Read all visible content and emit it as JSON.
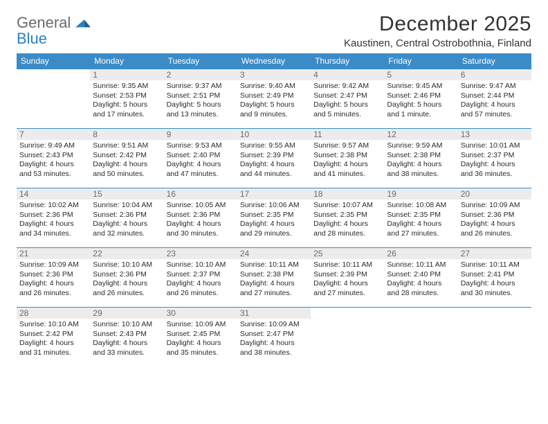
{
  "brand": {
    "word1": "General",
    "word2": "Blue"
  },
  "title": "December 2025",
  "location": "Kaustinen, Central Ostrobothnia, Finland",
  "colors": {
    "header_bg": "#3b8bc8",
    "header_text": "#ffffff",
    "row_border": "#3b8bc8",
    "daynum_bg": "#ececec",
    "daynum_text": "#6a6a6a",
    "body_text": "#2a2a2a",
    "page_bg": "#ffffff",
    "logo_gray": "#6a6a6a",
    "logo_blue": "#2a7fbf"
  },
  "typography": {
    "title_fontsize": 30,
    "location_fontsize": 15,
    "header_fontsize": 12,
    "daynum_fontsize": 12,
    "cell_fontsize": 10.5
  },
  "day_headers": [
    "Sunday",
    "Monday",
    "Tuesday",
    "Wednesday",
    "Thursday",
    "Friday",
    "Saturday"
  ],
  "weeks": [
    [
      null,
      {
        "n": "1",
        "sunrise": "9:35 AM",
        "sunset": "2:53 PM",
        "daylight": "5 hours and 17 minutes."
      },
      {
        "n": "2",
        "sunrise": "9:37 AM",
        "sunset": "2:51 PM",
        "daylight": "5 hours and 13 minutes."
      },
      {
        "n": "3",
        "sunrise": "9:40 AM",
        "sunset": "2:49 PM",
        "daylight": "5 hours and 9 minutes."
      },
      {
        "n": "4",
        "sunrise": "9:42 AM",
        "sunset": "2:47 PM",
        "daylight": "5 hours and 5 minutes."
      },
      {
        "n": "5",
        "sunrise": "9:45 AM",
        "sunset": "2:46 PM",
        "daylight": "5 hours and 1 minute."
      },
      {
        "n": "6",
        "sunrise": "9:47 AM",
        "sunset": "2:44 PM",
        "daylight": "4 hours and 57 minutes."
      }
    ],
    [
      {
        "n": "7",
        "sunrise": "9:49 AM",
        "sunset": "2:43 PM",
        "daylight": "4 hours and 53 minutes."
      },
      {
        "n": "8",
        "sunrise": "9:51 AM",
        "sunset": "2:42 PM",
        "daylight": "4 hours and 50 minutes."
      },
      {
        "n": "9",
        "sunrise": "9:53 AM",
        "sunset": "2:40 PM",
        "daylight": "4 hours and 47 minutes."
      },
      {
        "n": "10",
        "sunrise": "9:55 AM",
        "sunset": "2:39 PM",
        "daylight": "4 hours and 44 minutes."
      },
      {
        "n": "11",
        "sunrise": "9:57 AM",
        "sunset": "2:38 PM",
        "daylight": "4 hours and 41 minutes."
      },
      {
        "n": "12",
        "sunrise": "9:59 AM",
        "sunset": "2:38 PM",
        "daylight": "4 hours and 38 minutes."
      },
      {
        "n": "13",
        "sunrise": "10:01 AM",
        "sunset": "2:37 PM",
        "daylight": "4 hours and 36 minutes."
      }
    ],
    [
      {
        "n": "14",
        "sunrise": "10:02 AM",
        "sunset": "2:36 PM",
        "daylight": "4 hours and 34 minutes."
      },
      {
        "n": "15",
        "sunrise": "10:04 AM",
        "sunset": "2:36 PM",
        "daylight": "4 hours and 32 minutes."
      },
      {
        "n": "16",
        "sunrise": "10:05 AM",
        "sunset": "2:36 PM",
        "daylight": "4 hours and 30 minutes."
      },
      {
        "n": "17",
        "sunrise": "10:06 AM",
        "sunset": "2:35 PM",
        "daylight": "4 hours and 29 minutes."
      },
      {
        "n": "18",
        "sunrise": "10:07 AM",
        "sunset": "2:35 PM",
        "daylight": "4 hours and 28 minutes."
      },
      {
        "n": "19",
        "sunrise": "10:08 AM",
        "sunset": "2:35 PM",
        "daylight": "4 hours and 27 minutes."
      },
      {
        "n": "20",
        "sunrise": "10:09 AM",
        "sunset": "2:36 PM",
        "daylight": "4 hours and 26 minutes."
      }
    ],
    [
      {
        "n": "21",
        "sunrise": "10:09 AM",
        "sunset": "2:36 PM",
        "daylight": "4 hours and 26 minutes."
      },
      {
        "n": "22",
        "sunrise": "10:10 AM",
        "sunset": "2:36 PM",
        "daylight": "4 hours and 26 minutes."
      },
      {
        "n": "23",
        "sunrise": "10:10 AM",
        "sunset": "2:37 PM",
        "daylight": "4 hours and 26 minutes."
      },
      {
        "n": "24",
        "sunrise": "10:11 AM",
        "sunset": "2:38 PM",
        "daylight": "4 hours and 27 minutes."
      },
      {
        "n": "25",
        "sunrise": "10:11 AM",
        "sunset": "2:39 PM",
        "daylight": "4 hours and 27 minutes."
      },
      {
        "n": "26",
        "sunrise": "10:11 AM",
        "sunset": "2:40 PM",
        "daylight": "4 hours and 28 minutes."
      },
      {
        "n": "27",
        "sunrise": "10:11 AM",
        "sunset": "2:41 PM",
        "daylight": "4 hours and 30 minutes."
      }
    ],
    [
      {
        "n": "28",
        "sunrise": "10:10 AM",
        "sunset": "2:42 PM",
        "daylight": "4 hours and 31 minutes."
      },
      {
        "n": "29",
        "sunrise": "10:10 AM",
        "sunset": "2:43 PM",
        "daylight": "4 hours and 33 minutes."
      },
      {
        "n": "30",
        "sunrise": "10:09 AM",
        "sunset": "2:45 PM",
        "daylight": "4 hours and 35 minutes."
      },
      {
        "n": "31",
        "sunrise": "10:09 AM",
        "sunset": "2:47 PM",
        "daylight": "4 hours and 38 minutes."
      },
      null,
      null,
      null
    ]
  ],
  "labels": {
    "sunrise_prefix": "Sunrise: ",
    "sunset_prefix": "Sunset: ",
    "daylight_prefix": "Daylight: "
  }
}
